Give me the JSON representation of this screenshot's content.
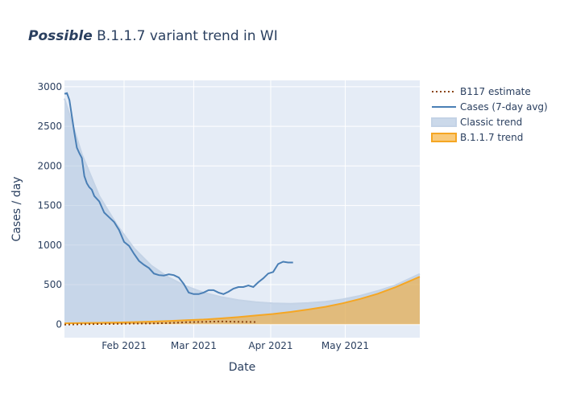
{
  "chart_data": {
    "type": "line",
    "title_emphasis": "Possible",
    "title_rest": " B.1.1.7 variant trend in WI",
    "xlabel": "Date",
    "ylabel": "Cases / day",
    "x_range": [
      "2021-01-08",
      "2021-05-31"
    ],
    "ylim": [
      -170,
      3080
    ],
    "y_ticks": [
      0,
      500,
      1000,
      1500,
      2000,
      2500,
      3000
    ],
    "y_tick_labels": [
      "0",
      "500",
      "1000",
      "1500",
      "2000",
      "2500",
      "3000"
    ],
    "x_ticks": [
      "2021-02-01",
      "2021-03-01",
      "2021-04-01",
      "2021-05-01"
    ],
    "x_tick_labels": [
      "Feb 2021",
      "Mar 2021",
      "Apr 2021",
      "May 2021"
    ],
    "grid": true,
    "legend_position": "top-right",
    "series": [
      {
        "name": "B117 estimate",
        "style": "dotted",
        "color": "#8b4513",
        "x": [
          "2021-01-08",
          "2021-01-15",
          "2021-01-22",
          "2021-01-29",
          "2021-02-05",
          "2021-02-12",
          "2021-02-19",
          "2021-02-26",
          "2021-03-05",
          "2021-03-12",
          "2021-03-19",
          "2021-03-26"
        ],
        "y": [
          -5,
          0,
          3,
          5,
          8,
          10,
          15,
          25,
          30,
          35,
          30,
          28
        ]
      },
      {
        "name": "Cases (7-day avg)",
        "style": "solid",
        "color": "#4a7fb5",
        "x": [
          "2021-01-08",
          "2021-01-09",
          "2021-01-10",
          "2021-01-11",
          "2021-01-12",
          "2021-01-13",
          "2021-01-14",
          "2021-01-15",
          "2021-01-16",
          "2021-01-17",
          "2021-01-18",
          "2021-01-19",
          "2021-01-20",
          "2021-01-22",
          "2021-01-24",
          "2021-01-26",
          "2021-01-28",
          "2021-01-30",
          "2021-02-01",
          "2021-02-03",
          "2021-02-05",
          "2021-02-07",
          "2021-02-09",
          "2021-02-11",
          "2021-02-13",
          "2021-02-15",
          "2021-02-17",
          "2021-02-19",
          "2021-02-21",
          "2021-02-23",
          "2021-02-25",
          "2021-02-27",
          "2021-03-01",
          "2021-03-03",
          "2021-03-05",
          "2021-03-07",
          "2021-03-09",
          "2021-03-11",
          "2021-03-13",
          "2021-03-15",
          "2021-03-17",
          "2021-03-19",
          "2021-03-21",
          "2021-03-23",
          "2021-03-25",
          "2021-03-27",
          "2021-03-29",
          "2021-03-31",
          "2021-04-02",
          "2021-04-04",
          "2021-04-06",
          "2021-04-08",
          "2021-04-10"
        ],
        "y": [
          2910,
          2920,
          2830,
          2620,
          2420,
          2230,
          2160,
          2100,
          1870,
          1780,
          1730,
          1700,
          1620,
          1550,
          1410,
          1350,
          1290,
          1190,
          1040,
          990,
          890,
          800,
          750,
          710,
          640,
          620,
          615,
          630,
          620,
          590,
          510,
          400,
          380,
          380,
          400,
          430,
          430,
          400,
          380,
          410,
          450,
          470,
          470,
          490,
          470,
          530,
          580,
          640,
          660,
          760,
          790,
          780,
          780
        ]
      },
      {
        "name": "Classic trend",
        "style": "fill",
        "color": "#a9c0dc",
        "x": [
          "2021-01-08",
          "2021-01-15",
          "2021-01-22",
          "2021-01-29",
          "2021-02-05",
          "2021-02-12",
          "2021-02-19",
          "2021-02-26",
          "2021-03-05",
          "2021-03-12",
          "2021-03-19",
          "2021-03-26",
          "2021-04-02",
          "2021-04-09",
          "2021-04-16",
          "2021-04-23",
          "2021-04-30",
          "2021-05-07",
          "2021-05-14",
          "2021-05-21",
          "2021-05-31"
        ],
        "y": [
          2850,
          2150,
          1620,
          1260,
          960,
          740,
          590,
          480,
          400,
          345,
          305,
          280,
          265,
          260,
          268,
          285,
          315,
          360,
          420,
          490,
          635
        ]
      },
      {
        "name": "B.1.1.7 trend",
        "style": "fill",
        "color": "#f5a623",
        "x": [
          "2021-01-08",
          "2021-01-15",
          "2021-01-22",
          "2021-01-29",
          "2021-02-05",
          "2021-02-12",
          "2021-02-19",
          "2021-02-26",
          "2021-03-05",
          "2021-03-12",
          "2021-03-19",
          "2021-03-26",
          "2021-04-02",
          "2021-04-09",
          "2021-04-16",
          "2021-04-23",
          "2021-04-30",
          "2021-05-07",
          "2021-05-14",
          "2021-05-21",
          "2021-05-31"
        ],
        "y": [
          12,
          15,
          18,
          22,
          27,
          33,
          41,
          50,
          60,
          74,
          90,
          110,
          130,
          155,
          185,
          220,
          265,
          320,
          385,
          465,
          600
        ]
      }
    ]
  }
}
